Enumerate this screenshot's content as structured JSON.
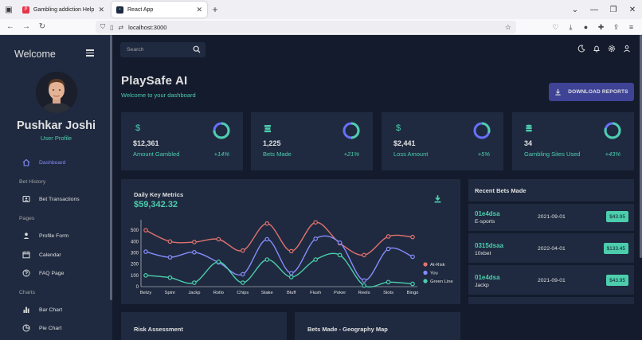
{
  "browser": {
    "tabs": [
      {
        "title": "Gambling addiction Help",
        "active": false
      },
      {
        "title": "React App",
        "active": true
      }
    ],
    "url": "localhost:3000"
  },
  "sidebar": {
    "title": "Welcome",
    "user_name": "Pushkar Joshi",
    "user_role": "User Profile",
    "dashboard": "Dashboard",
    "sections": {
      "bet_history": "Bet History",
      "pages": "Pages",
      "charts": "Charts"
    },
    "items": {
      "bet_transactions": "Bet Transactions",
      "profile_form": "Profile Form",
      "calendar": "Calendar",
      "faq": "FAQ Page",
      "bar_chart": "Bar Chart",
      "pie_chart": "Pie Chart"
    }
  },
  "header": {
    "search_placeholder": "Search",
    "title": "PlaySafe AI",
    "subtitle": "Welcome to your dashboard",
    "download_label": "DOWNLOAD REPORTS"
  },
  "stats": [
    {
      "icon": "dollar-icon",
      "value": "$12,361",
      "label": "Amount Gambled",
      "percent": "+14%",
      "progress": 0.75
    },
    {
      "icon": "bets-icon",
      "value": "1,225",
      "label": "Bets Made",
      "percent": "+21%",
      "progress": 0.5
    },
    {
      "icon": "dollar-icon",
      "value": "$2,441",
      "label": "Loss Amount",
      "percent": "+5%",
      "progress": 0.3
    },
    {
      "icon": "database-icon",
      "value": "34",
      "label": "Gambling Sites Used",
      "percent": "+43%",
      "progress": 0.8
    }
  ],
  "metrics": {
    "title": "Daily Key Metrics",
    "value": "$59,342.32"
  },
  "chart_data": {
    "type": "line",
    "categories": [
      "Betzy",
      "Spinr",
      "Jackp",
      "Rollo",
      "Chips",
      "Stake",
      "Bluff",
      "Flush",
      "Poker",
      "Reels",
      "Slots",
      "Bingo"
    ],
    "series": [
      {
        "name": "At-Risk",
        "color": "#e2726e",
        "values": [
          500,
          400,
          395,
          420,
          320,
          560,
          315,
          570,
          385,
          280,
          445,
          440
        ]
      },
      {
        "name": "You",
        "color": "#868dfb",
        "values": [
          310,
          260,
          305,
          215,
          110,
          420,
          120,
          425,
          390,
          55,
          335,
          265
        ]
      },
      {
        "name": "Green Line",
        "color": "#4cceac",
        "values": [
          100,
          80,
          35,
          220,
          35,
          240,
          85,
          240,
          280,
          10,
          40,
          25
        ]
      }
    ],
    "yticks": [
      0,
      100,
      200,
      300,
      400,
      500
    ],
    "ylim": [
      0,
      600
    ],
    "grid": false,
    "legend": "right"
  },
  "recent": {
    "title": "Recent Bets Made",
    "rows": [
      {
        "id": "01e4dsa",
        "user": "E-sports",
        "date": "2021-09-01",
        "amount": "$43.95"
      },
      {
        "id": "0315dsaa",
        "user": "10xbet",
        "date": "2022-04-01",
        "amount": "$133.45"
      },
      {
        "id": "01e4dsa",
        "user": "Jackp",
        "date": "2021-09-01",
        "amount": "$43.95"
      }
    ]
  },
  "bottom": {
    "risk": "Risk Assessment",
    "geo": "Bets Made - Geography Map"
  }
}
